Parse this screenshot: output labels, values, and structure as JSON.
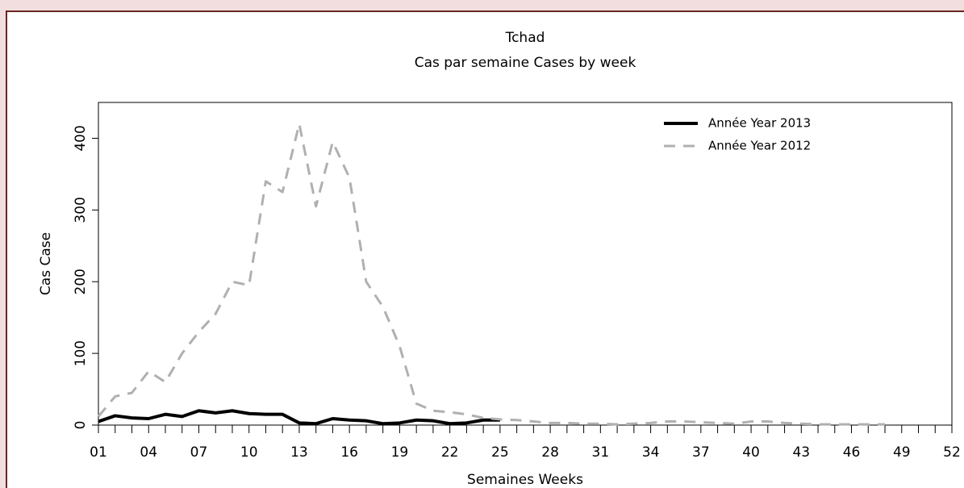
{
  "chart_data": {
    "type": "line",
    "title": "Tchad",
    "subtitle": "Cas par semaine Cases by week",
    "x_label": "Semaines Weeks",
    "y_label": "Cas Case",
    "categories": [
      "01",
      null,
      null,
      "04",
      null,
      null,
      "07",
      null,
      null,
      "10",
      null,
      null,
      "13",
      null,
      null,
      "16",
      null,
      null,
      "19",
      null,
      null,
      "22",
      null,
      null,
      "25",
      null,
      null,
      "28",
      null,
      null,
      "31",
      null,
      null,
      "34",
      null,
      null,
      "37",
      null,
      null,
      "40",
      null,
      null,
      "43",
      null,
      null,
      "46",
      null,
      null,
      "49",
      null,
      null,
      "52"
    ],
    "series": [
      {
        "name": "Année Year 2013",
        "color": "#000000",
        "style": "solid",
        "values": [
          5,
          13,
          10,
          9,
          15,
          12,
          20,
          17,
          20,
          16,
          15,
          15,
          3,
          2,
          9,
          7,
          6,
          2,
          3,
          7,
          6,
          2,
          3,
          7,
          7,
          null,
          null,
          null,
          null,
          null,
          null,
          null,
          null,
          null,
          null,
          null,
          null,
          null,
          null,
          null,
          null,
          null,
          null,
          null,
          null,
          null,
          null,
          null,
          null,
          null,
          null,
          null
        ]
      },
      {
        "name": "Année Year 2012",
        "color": "#b0b0b0",
        "style": "dashed",
        "values": [
          12,
          40,
          45,
          75,
          60,
          100,
          130,
          155,
          200,
          195,
          340,
          325,
          420,
          305,
          395,
          345,
          200,
          165,
          110,
          30,
          20,
          18,
          15,
          10,
          8,
          7,
          5,
          3,
          3,
          2,
          2,
          1,
          2,
          3,
          5,
          5,
          4,
          3,
          2,
          5,
          5,
          3,
          2,
          1,
          1,
          1,
          1,
          1,
          null,
          null,
          null,
          null
        ]
      }
    ],
    "ylim": [
      0,
      450
    ],
    "yticks": [
      0,
      100,
      200,
      300,
      400
    ],
    "legend": "top-right"
  }
}
